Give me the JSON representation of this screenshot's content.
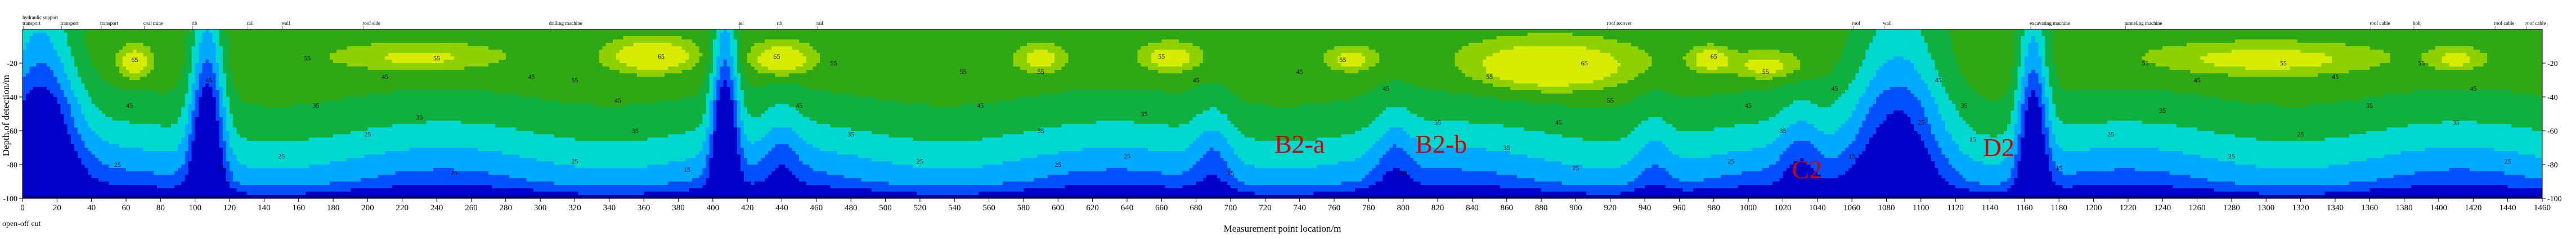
{
  "chart_data": {
    "type": "heatmap",
    "title": "",
    "xlabel": "Measurement point location/m",
    "ylabel": "Depth of detection/m",
    "xlim": [
      0,
      1460
    ],
    "ylim": [
      -100,
      0
    ],
    "x_ticks": [
      0,
      20,
      40,
      60,
      80,
      100,
      120,
      140,
      160,
      180,
      200,
      220,
      240,
      260,
      280,
      300,
      320,
      340,
      360,
      380,
      400,
      420,
      440,
      460,
      480,
      500,
      520,
      540,
      560,
      580,
      600,
      620,
      640,
      660,
      680,
      700,
      720,
      740,
      760,
      780,
      800,
      820,
      840,
      860,
      880,
      900,
      920,
      940,
      960,
      980,
      1000,
      1020,
      1040,
      1060,
      1080,
      1100,
      1120,
      1140,
      1160,
      1180,
      1200,
      1220,
      1240,
      1260,
      1280,
      1300,
      1320,
      1340,
      1360,
      1380,
      1400,
      1420,
      1440,
      1460
    ],
    "y_ticks": [
      -20,
      -40,
      -60,
      -80,
      -100
    ],
    "contour_levels": [
      5,
      15,
      25,
      35,
      45,
      55,
      65
    ],
    "contour_labels": [
      {
        "x": 165,
        "y": -17,
        "v": "55"
      },
      {
        "x": 240,
        "y": -17,
        "v": "55"
      },
      {
        "x": 210,
        "y": -28,
        "v": "45"
      },
      {
        "x": 295,
        "y": -28,
        "v": "45"
      },
      {
        "x": 170,
        "y": -45,
        "v": "35"
      },
      {
        "x": 230,
        "y": -52,
        "v": "35"
      },
      {
        "x": 200,
        "y": -62,
        "v": "25"
      },
      {
        "x": 150,
        "y": -75,
        "v": "25"
      },
      {
        "x": 250,
        "y": -85,
        "v": "25"
      },
      {
        "x": 65,
        "y": -18,
        "v": "65"
      },
      {
        "x": 62,
        "y": -45,
        "v": "45"
      },
      {
        "x": 55,
        "y": -80,
        "v": "25"
      },
      {
        "x": 108,
        "y": -30,
        "v": "45"
      },
      {
        "x": 115,
        "y": -82,
        "v": "15"
      },
      {
        "x": 320,
        "y": -30,
        "v": "55"
      },
      {
        "x": 345,
        "y": -42,
        "v": "45"
      },
      {
        "x": 370,
        "y": -16,
        "v": "65"
      },
      {
        "x": 355,
        "y": -60,
        "v": "35"
      },
      {
        "x": 320,
        "y": -78,
        "v": "25"
      },
      {
        "x": 385,
        "y": -83,
        "v": "15"
      },
      {
        "x": 437,
        "y": -16,
        "v": "65"
      },
      {
        "x": 470,
        "y": -20,
        "v": "55"
      },
      {
        "x": 450,
        "y": -45,
        "v": "45"
      },
      {
        "x": 480,
        "y": -62,
        "v": "35"
      },
      {
        "x": 520,
        "y": -78,
        "v": "25"
      },
      {
        "x": 545,
        "y": -25,
        "v": "55"
      },
      {
        "x": 555,
        "y": -45,
        "v": "45"
      },
      {
        "x": 590,
        "y": -60,
        "v": "35"
      },
      {
        "x": 600,
        "y": -80,
        "v": "25"
      },
      {
        "x": 590,
        "y": -25,
        "v": "55"
      },
      {
        "x": 660,
        "y": -16,
        "v": "55"
      },
      {
        "x": 680,
        "y": -30,
        "v": "45"
      },
      {
        "x": 650,
        "y": -50,
        "v": "35"
      },
      {
        "x": 640,
        "y": -75,
        "v": "25"
      },
      {
        "x": 700,
        "y": -85,
        "v": "15"
      },
      {
        "x": 740,
        "y": -25,
        "v": "45"
      },
      {
        "x": 765,
        "y": -18,
        "v": "55"
      },
      {
        "x": 790,
        "y": -35,
        "v": "45"
      },
      {
        "x": 820,
        "y": -55,
        "v": "35"
      },
      {
        "x": 800,
        "y": -85,
        "v": "25"
      },
      {
        "x": 850,
        "y": -28,
        "v": "55"
      },
      {
        "x": 905,
        "y": -20,
        "v": "65"
      },
      {
        "x": 920,
        "y": -42,
        "v": "55"
      },
      {
        "x": 890,
        "y": -55,
        "v": "45"
      },
      {
        "x": 860,
        "y": -70,
        "v": "35"
      },
      {
        "x": 900,
        "y": -82,
        "v": "25"
      },
      {
        "x": 980,
        "y": -16,
        "v": "65"
      },
      {
        "x": 1010,
        "y": -25,
        "v": "55"
      },
      {
        "x": 1000,
        "y": -45,
        "v": "45"
      },
      {
        "x": 1020,
        "y": -60,
        "v": "35"
      },
      {
        "x": 990,
        "y": -78,
        "v": "25"
      },
      {
        "x": 1050,
        "y": -35,
        "v": "45"
      },
      {
        "x": 1110,
        "y": -30,
        "v": "45"
      },
      {
        "x": 1125,
        "y": -45,
        "v": "35"
      },
      {
        "x": 1100,
        "y": -55,
        "v": "25"
      },
      {
        "x": 1060,
        "y": -75,
        "v": "15"
      },
      {
        "x": 1130,
        "y": -65,
        "v": "15"
      },
      {
        "x": 1230,
        "y": -20,
        "v": "55"
      },
      {
        "x": 1260,
        "y": -30,
        "v": "45"
      },
      {
        "x": 1240,
        "y": -48,
        "v": "35"
      },
      {
        "x": 1210,
        "y": -62,
        "v": "25"
      },
      {
        "x": 1280,
        "y": -75,
        "v": "25"
      },
      {
        "x": 1310,
        "y": -20,
        "v": "55"
      },
      {
        "x": 1340,
        "y": -28,
        "v": "45"
      },
      {
        "x": 1360,
        "y": -45,
        "v": "35"
      },
      {
        "x": 1320,
        "y": -62,
        "v": "25"
      },
      {
        "x": 1390,
        "y": -20,
        "v": "55"
      },
      {
        "x": 1420,
        "y": -35,
        "v": "45"
      },
      {
        "x": 1410,
        "y": -55,
        "v": "35"
      },
      {
        "x": 1440,
        "y": -78,
        "v": "25"
      },
      {
        "x": 1180,
        "y": -82,
        "v": "15"
      }
    ],
    "anomaly_labels": [
      {
        "x": 740,
        "y": -73,
        "label": "B2-a"
      },
      {
        "x": 822,
        "y": -73,
        "label": "B2-b"
      },
      {
        "x": 1034,
        "y": -88,
        "label": "C2"
      },
      {
        "x": 1145,
        "y": -75,
        "label": "D2"
      }
    ],
    "top_annotations": [
      {
        "x": 0,
        "label": "hydraulic support"
      },
      {
        "x": 0,
        "label": "transport"
      },
      {
        "x": 22,
        "label": "transport"
      },
      {
        "x": 45,
        "label": "transport"
      },
      {
        "x": 70,
        "label": "coal mine"
      },
      {
        "x": 98,
        "label": "rib"
      },
      {
        "x": 130,
        "label": "rail"
      },
      {
        "x": 150,
        "label": "wall"
      },
      {
        "x": 197,
        "label": "roof side"
      },
      {
        "x": 305,
        "label": "drilling machine"
      },
      {
        "x": 415,
        "label": "tel"
      },
      {
        "x": 437,
        "label": "rib"
      },
      {
        "x": 460,
        "label": "rail"
      },
      {
        "x": 918,
        "label": "roof recover"
      },
      {
        "x": 1060,
        "label": "roof"
      },
      {
        "x": 1078,
        "label": "wall"
      },
      {
        "x": 1163,
        "label": "excavating machine"
      },
      {
        "x": 1218,
        "label": "tunneling machine"
      },
      {
        "x": 1360,
        "label": "roof cable"
      },
      {
        "x": 1385,
        "label": "bolt"
      },
      {
        "x": 1432,
        "label": "roof cable"
      },
      {
        "x": 1460,
        "label": "roof cable"
      }
    ],
    "corner_label": "open-off cut",
    "colorscale": [
      "#0000c8",
      "#0050ff",
      "#00aaff",
      "#00d8d0",
      "#10b040",
      "#2ea814",
      "#8ed000",
      "#d8ec00",
      "#ffd800",
      "#ff7000",
      "#ec1000",
      "#f4a8a8",
      "#ffffff"
    ],
    "legend": "none",
    "grid": false
  }
}
